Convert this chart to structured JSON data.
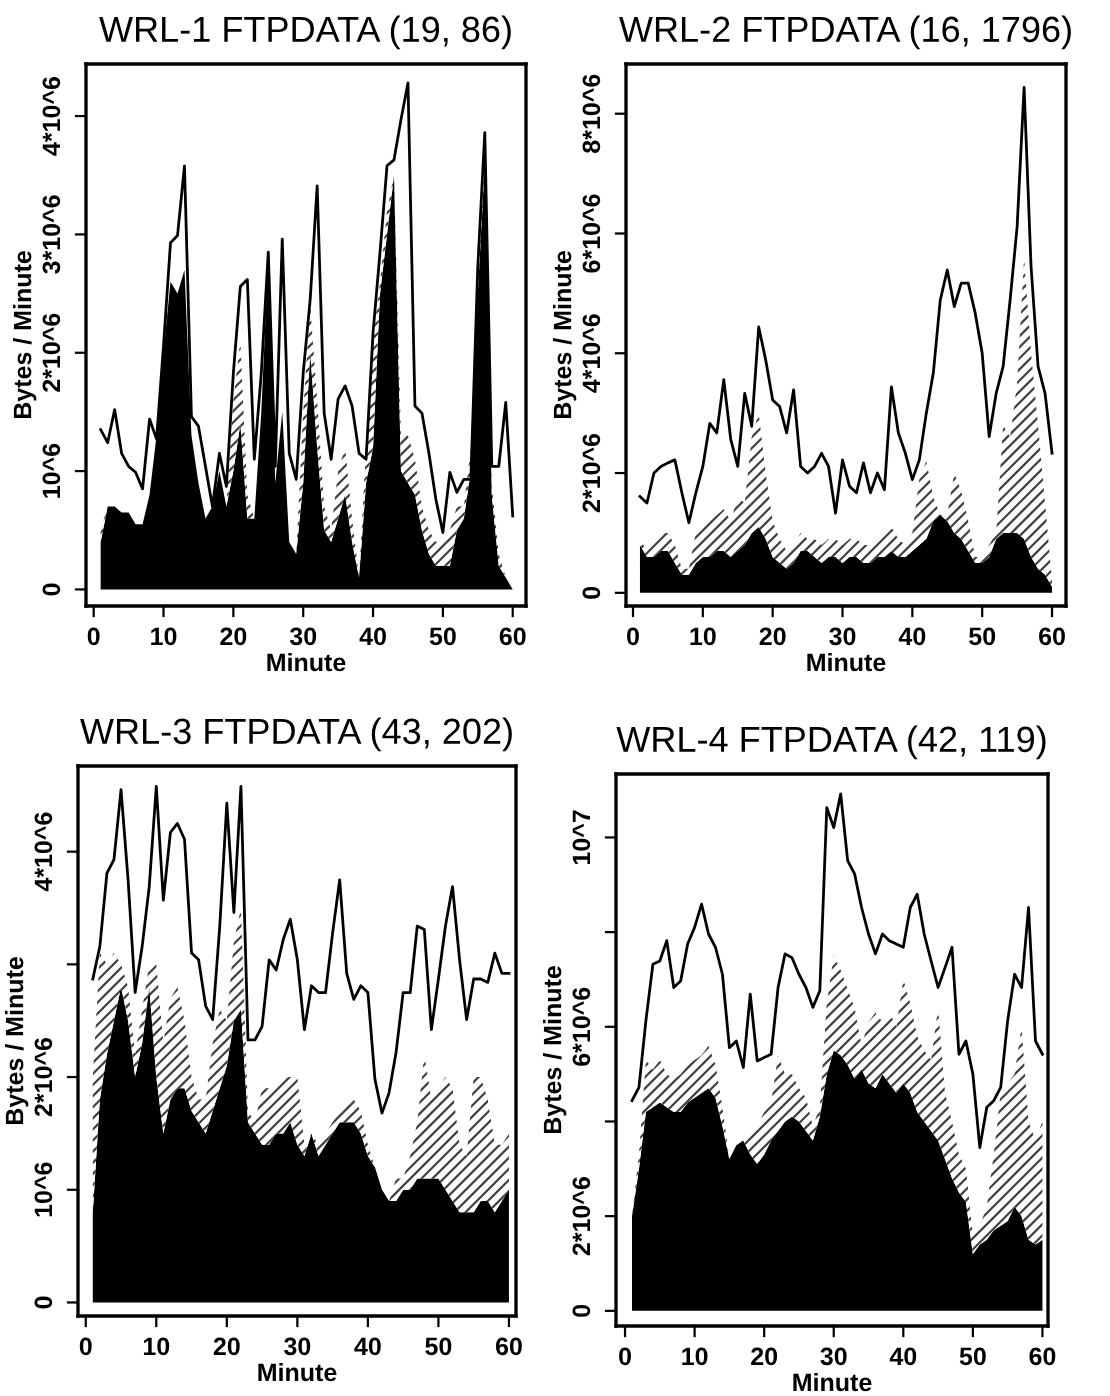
{
  "chart_data": [
    {
      "type": "area",
      "title": "WRL-1 FTPDATA (19, 86)",
      "xlabel": "Minute",
      "ylabel": "Bytes / Minute",
      "stacked": true,
      "grid": false,
      "x": [
        1,
        2,
        3,
        4,
        5,
        6,
        7,
        8,
        9,
        10,
        11,
        12,
        13,
        14,
        15,
        16,
        17,
        18,
        19,
        20,
        21,
        22,
        23,
        24,
        25,
        26,
        27,
        28,
        29,
        30,
        31,
        32,
        33,
        34,
        35,
        36,
        37,
        38,
        39,
        40,
        41,
        42,
        43,
        44,
        45,
        46,
        47,
        48,
        49,
        50,
        51,
        52,
        53,
        54,
        55,
        56,
        57,
        58,
        59,
        60
      ],
      "xlim": [
        -1.1,
        61.9
      ],
      "xticks": [
        0,
        10,
        20,
        30,
        40,
        50,
        60
      ],
      "ylim": [
        -140000.0,
        4440000.0
      ],
      "yticks": [
        0,
        {
          "value": 1000000.0,
          "label": "10^6"
        },
        {
          "value": 2000000.0,
          "label": "2*10^6"
        },
        {
          "value": 3000000.0,
          "label": "3*10^6"
        },
        {
          "value": 4000000.0,
          "label": "4*10^6"
        }
      ],
      "series": [
        {
          "color": "#000000",
          "values": [
            400000.0,
            700000.0,
            700000.0,
            650000.0,
            650000.0,
            550000.0,
            550000.0,
            800000.0,
            1300000.0,
            2000000.0,
            2600000.0,
            2500000.0,
            2700000.0,
            1300000.0,
            900000.0,
            600000.0,
            700000.0,
            1000000.0,
            700000.0,
            1000000.0,
            1400000.0,
            600000.0,
            600000.0,
            1500000.0,
            2800000.0,
            900000.0,
            1500000.0,
            400000.0,
            300000.0,
            900000.0,
            2000000.0,
            1200000.0,
            500000.0,
            400000.0,
            600000.0,
            800000.0,
            400000.0,
            100000.0,
            900000.0,
            1200000.0,
            2500000.0,
            3000000.0,
            3500000.0,
            1000000.0,
            900000.0,
            800000.0,
            500000.0,
            300000.0,
            200000.0,
            200000.0,
            200000.0,
            500000.0,
            600000.0,
            1000000.0,
            2500000.0,
            3600000.0,
            800000.0,
            200000.0,
            100000.0,
            0
          ]
        },
        {
          "color": "#404040",
          "values": [
            100000.0,
            0,
            0,
            0,
            0,
            0,
            0,
            0,
            0,
            0,
            0,
            0,
            0,
            0,
            0,
            0,
            0,
            0,
            0,
            600000.0,
            700000.0,
            200000.0,
            0,
            0,
            0,
            0,
            0,
            0,
            0,
            600000.0,
            400000.0,
            400000.0,
            200000.0,
            100000.0,
            400000.0,
            400000.0,
            200000.0,
            0,
            300000.0,
            900000.0,
            100000.0,
            200000.0,
            0,
            300000.0,
            400000.0,
            300000.0,
            200000.0,
            200000.0,
            200000.0,
            200000.0,
            300000.0,
            200000.0,
            100000.0,
            200000.0,
            100000.0,
            100000.0,
            100000.0,
            100000.0,
            0,
            0
          ]
        },
        {
          "type": "line",
          "color": "#000000",
          "values": [
            1350000.0,
            1240000.0,
            1520000.0,
            1150000.0,
            1040000.0,
            990000.0,
            850000.0,
            1440000.0,
            1270000.0,
            2060000.0,
            2930000.0,
            2990000.0,
            3580000.0,
            1460000.0,
            1380000.0,
            1040000.0,
            700000.0,
            1150000.0,
            870000.0,
            1830000.0,
            2560000.0,
            2620000.0,
            1100000.0,
            1830000.0,
            2850000.0,
            1040000.0,
            2960000.0,
            1150000.0,
            930000.0,
            1830000.0,
            2450000.0,
            3410000.0,
            1490000.0,
            1100000.0,
            1610000.0,
            1720000.0,
            1550000.0,
            1150000.0,
            1100000.0,
            2170000.0,
            2850000.0,
            3580000.0,
            3630000.0,
            3970000.0,
            4280000.0,
            1550000.0,
            1490000.0,
            1150000.0,
            760000.0,
            480000.0,
            990000.0,
            820000.0,
            930000.0,
            930000.0,
            2730000.0,
            3860000.0,
            1040000.0,
            1040000.0,
            1580000.0,
            620000.0
          ]
        }
      ]
    },
    {
      "type": "area",
      "title": "WRL-2 FTPDATA (16, 1796)",
      "xlabel": "Minute",
      "ylabel": "Bytes / Minute",
      "stacked": true,
      "grid": false,
      "x": [
        1,
        2,
        3,
        4,
        5,
        6,
        7,
        8,
        9,
        10,
        11,
        12,
        13,
        14,
        15,
        16,
        17,
        18,
        19,
        20,
        21,
        22,
        23,
        24,
        25,
        26,
        27,
        28,
        29,
        30,
        31,
        32,
        33,
        34,
        35,
        36,
        37,
        38,
        39,
        40,
        41,
        42,
        43,
        44,
        45,
        46,
        47,
        48,
        49,
        50,
        51,
        52,
        53,
        54,
        55,
        56,
        57,
        58,
        59,
        60
      ],
      "xlim": [
        -1,
        62
      ],
      "xticks": [
        0,
        10,
        20,
        30,
        40,
        50,
        60
      ],
      "ylim": [
        -220000.0,
        8830000.0
      ],
      "yticks": [
        0,
        {
          "value": 2000000.0,
          "label": "2*10^6"
        },
        {
          "value": 4000000.0,
          "label": "4*10^6"
        },
        {
          "value": 6000000.0,
          "label": "6*10^6"
        },
        {
          "value": 8000000.0,
          "label": "8*10^6"
        }
      ],
      "series": [
        {
          "color": "#000000",
          "values": [
            800000.0,
            600000.0,
            600000.0,
            700000.0,
            700000.0,
            500000.0,
            300000.0,
            300000.0,
            500000.0,
            600000.0,
            600000.0,
            700000.0,
            700000.0,
            600000.0,
            700000.0,
            800000.0,
            1000000.0,
            1100000.0,
            900000.0,
            600000.0,
            500000.0,
            400000.0,
            500000.0,
            700000.0,
            700000.0,
            600000.0,
            500000.0,
            600000.0,
            600000.0,
            500000.0,
            600000.0,
            600000.0,
            500000.0,
            500000.0,
            600000.0,
            600000.0,
            700000.0,
            600000.0,
            600000.0,
            700000.0,
            800000.0,
            900000.0,
            1200000.0,
            1300000.0,
            1200000.0,
            1000000.0,
            900000.0,
            700000.0,
            500000.0,
            500000.0,
            600000.0,
            900000.0,
            1000000.0,
            1000000.0,
            1000000.0,
            900000.0,
            600000.0,
            400000.0,
            300000.0,
            100000.0
          ]
        },
        {
          "color": "#404040",
          "values": [
            100000.0,
            100000.0,
            300000.0,
            300000.0,
            300000.0,
            300000.0,
            100000.0,
            100000.0,
            500000.0,
            500000.0,
            600000.0,
            600000.0,
            700000.0,
            600000.0,
            900000.0,
            700000.0,
            1600000.0,
            1900000.0,
            1100000.0,
            600000.0,
            400000.0,
            300000.0,
            300000.0,
            300000.0,
            200000.0,
            300000.0,
            300000.0,
            300000.0,
            300000.0,
            300000.0,
            300000.0,
            300000.0,
            300000.0,
            300000.0,
            300000.0,
            400000.0,
            400000.0,
            300000.0,
            200000.0,
            300000.0,
            1100000.0,
            1300000.0,
            400000.0,
            0,
            100000.0,
            1000000.0,
            800000.0,
            500000.0,
            100000.0,
            100000.0,
            200000.0,
            100000.0,
            1800000.0,
            1600000.0,
            2500000.0,
            4700000.0,
            3400000.0,
            2400000.0,
            1200000.0,
            100000.0
          ]
        },
        {
          "type": "line",
          "color": "#000000",
          "values": [
            1610000.0,
            1500000.0,
            2000000.0,
            2110000.0,
            2170000.0,
            2220000.0,
            1670000.0,
            1170000.0,
            1670000.0,
            2110000.0,
            2830000.0,
            2670000.0,
            3560000.0,
            2560000.0,
            2110000.0,
            3330000.0,
            2780000.0,
            4440000.0,
            3890000.0,
            3220000.0,
            3110000.0,
            2670000.0,
            3390000.0,
            2110000.0,
            2000000.0,
            2110000.0,
            2330000.0,
            2110000.0,
            1330000.0,
            2220000.0,
            1780000.0,
            1670000.0,
            2170000.0,
            1670000.0,
            2000000.0,
            1720000.0,
            3440000.0,
            2670000.0,
            2330000.0,
            1890000.0,
            2220000.0,
            3000000.0,
            3670000.0,
            4890000.0,
            5390000.0,
            4780000.0,
            5170000.0,
            5170000.0,
            4670000.0,
            4000000.0,
            2610000.0,
            3330000.0,
            3780000.0,
            4890000.0,
            6110000.0,
            8440000.0,
            5440000.0,
            3780000.0,
            3330000.0,
            2330000.0
          ]
        }
      ]
    },
    {
      "type": "area",
      "title": "WRL-3 FTPDATA (43, 202)",
      "xlabel": "Minute",
      "ylabel": "Bytes / Minute",
      "stacked": true,
      "grid": false,
      "x": [
        1,
        2,
        3,
        4,
        5,
        6,
        7,
        8,
        9,
        10,
        11,
        12,
        13,
        14,
        15,
        16,
        17,
        18,
        19,
        20,
        21,
        22,
        23,
        24,
        25,
        26,
        27,
        28,
        29,
        30,
        31,
        32,
        33,
        34,
        35,
        36,
        37,
        38,
        39,
        40,
        41,
        42,
        43,
        44,
        45,
        46,
        47,
        48,
        49,
        50,
        51,
        52,
        53,
        54,
        55,
        56,
        57,
        58,
        59,
        60
      ],
      "xlim": [
        -1.1,
        61
      ],
      "xticks": [
        0,
        10,
        20,
        30,
        40,
        50,
        60
      ],
      "ylim": [
        -120000.0,
        4760000.0
      ],
      "yticks": [
        0,
        {
          "value": 1000000.0,
          "label": "10^6"
        },
        {
          "value": 2000000.0,
          "label": "2*10^6"
        },
        {
          "value": 3000000.0,
          "label": null
        },
        {
          "value": 4000000.0,
          "label": "4*10^6"
        }
      ],
      "series": [
        {
          "color": "#000000",
          "values": [
            800000.0,
            1800000.0,
            2200000.0,
            2500000.0,
            2800000.0,
            2500000.0,
            2000000.0,
            2300000.0,
            2800000.0,
            2000000.0,
            1500000.0,
            1800000.0,
            1900000.0,
            1900000.0,
            1700000.0,
            1600000.0,
            1500000.0,
            1700000.0,
            1900000.0,
            2100000.0,
            2500000.0,
            2600000.0,
            1600000.0,
            1500000.0,
            1400000.0,
            1400000.0,
            1500000.0,
            1500000.0,
            1600000.0,
            1400000.0,
            1300000.0,
            1500000.0,
            1300000.0,
            1400000.0,
            1500000.0,
            1600000.0,
            1600000.0,
            1600000.0,
            1500000.0,
            1300000.0,
            1200000.0,
            1000000.0,
            900000.0,
            900000.0,
            1000000.0,
            1000000.0,
            1100000.0,
            1100000.0,
            1100000.0,
            1100000.0,
            1000000.0,
            900000.0,
            800000.0,
            800000.0,
            800000.0,
            900000.0,
            900000.0,
            800000.0,
            900000.0,
            1000000.0
          ]
        },
        {
          "color": "#404040",
          "values": [
            1200000.0,
            1300000.0,
            800000.0,
            600000.0,
            200000.0,
            300000.0,
            200000.0,
            300000.0,
            200000.0,
            1000000.0,
            800000.0,
            900000.0,
            900000.0,
            600000.0,
            300000.0,
            200000.0,
            300000.0,
            600000.0,
            700000.0,
            400000.0,
            700000.0,
            900000.0,
            100000.0,
            100000.0,
            500000.0,
            500000.0,
            400000.0,
            500000.0,
            400000.0,
            600000.0,
            100000.0,
            0,
            100000.0,
            100000.0,
            100000.0,
            100000.0,
            200000.0,
            200000.0,
            200000.0,
            100000.0,
            0,
            0,
            0,
            200000.0,
            100000.0,
            300000.0,
            500000.0,
            1100000.0,
            700000.0,
            800000.0,
            1000000.0,
            1000000.0,
            600000.0,
            500000.0,
            1200000.0,
            1100000.0,
            900000.0,
            600000.0,
            500000.0,
            500000.0
          ]
        },
        {
          "type": "line",
          "color": "#000000",
          "values": [
            2870000.0,
            3160000.0,
            3810000.0,
            3930000.0,
            4550000.0,
            3750000.0,
            2750000.0,
            3160000.0,
            3690000.0,
            4580000.0,
            3570000.0,
            4170000.0,
            4250000.0,
            4110000.0,
            3100000.0,
            3040000.0,
            2630000.0,
            2510000.0,
            3340000.0,
            4430000.0,
            3460000.0,
            4580000.0,
            2330000.0,
            2330000.0,
            2450000.0,
            3040000.0,
            2950000.0,
            3220000.0,
            3400000.0,
            3040000.0,
            2420000.0,
            2810000.0,
            2750000.0,
            2750000.0,
            3280000.0,
            3750000.0,
            2920000.0,
            2690000.0,
            2810000.0,
            2750000.0,
            1980000.0,
            1680000.0,
            1860000.0,
            2220000.0,
            2750000.0,
            2750000.0,
            3340000.0,
            3310000.0,
            2420000.0,
            2870000.0,
            3340000.0,
            3690000.0,
            3040000.0,
            2510000.0,
            2870000.0,
            2870000.0,
            2840000.0,
            3100000.0,
            2920000.0,
            2920000.0
          ]
        }
      ]
    },
    {
      "type": "area",
      "title": "WRL-4 FTPDATA (42, 119)",
      "xlabel": "Minute",
      "ylabel": "Bytes / Minute",
      "stacked": true,
      "grid": false,
      "x": [
        1,
        2,
        3,
        4,
        5,
        6,
        7,
        8,
        9,
        10,
        11,
        12,
        13,
        14,
        15,
        16,
        17,
        18,
        19,
        20,
        21,
        22,
        23,
        24,
        25,
        26,
        27,
        28,
        29,
        30,
        31,
        32,
        33,
        34,
        35,
        36,
        37,
        38,
        39,
        40,
        41,
        42,
        43,
        44,
        45,
        46,
        47,
        48,
        49,
        50,
        51,
        52,
        53,
        54,
        55,
        56,
        57,
        58,
        59,
        60
      ],
      "xlim": [
        -1.3,
        60.8
      ],
      "xticks": [
        0,
        10,
        20,
        30,
        40,
        50,
        60
      ],
      "ylim": [
        -320000.0,
        11340000.0
      ],
      "yticks": [
        0,
        {
          "value": 2000000.0,
          "label": "2*10^6"
        },
        {
          "value": 4000000.0,
          "label": null
        },
        {
          "value": 6000000.0,
          "label": "6*10^6"
        },
        {
          "value": 8000000.0,
          "label": null
        },
        {
          "value": 10000000.0,
          "label": "10^7"
        }
      ],
      "series": [
        {
          "color": "#000000",
          "values": [
            2000000.0,
            3000000.0,
            4200000.0,
            4300000.0,
            4400000.0,
            4300000.0,
            4200000.0,
            4200000.0,
            4400000.0,
            4500000.0,
            4600000.0,
            4700000.0,
            4500000.0,
            3900000.0,
            3200000.0,
            3500000.0,
            3600000.0,
            3300000.0,
            3100000.0,
            3300000.0,
            3600000.0,
            3800000.0,
            4000000.0,
            4100000.0,
            4000000.0,
            3800000.0,
            3600000.0,
            4100000.0,
            5000000.0,
            5500000.0,
            5400000.0,
            5200000.0,
            4900000.0,
            5100000.0,
            4800000.0,
            4700000.0,
            5000000.0,
            4800000.0,
            4600000.0,
            4800000.0,
            4600000.0,
            4200000.0,
            4000000.0,
            3800000.0,
            3600000.0,
            3200000.0,
            2800000.0,
            2500000.0,
            2300000.0,
            1200000.0,
            1400000.0,
            1500000.0,
            1700000.0,
            1800000.0,
            1900000.0,
            2200000.0,
            2000000.0,
            1500000.0,
            1400000.0,
            1500000.0
          ]
        },
        {
          "color": "#404040",
          "values": [
            0,
            300000.0,
            1100000.0,
            800000.0,
            900000.0,
            700000.0,
            700000.0,
            800000.0,
            800000.0,
            800000.0,
            800000.0,
            900000.0,
            700000.0,
            400000.0,
            0,
            0,
            0,
            400000.0,
            800000.0,
            900000.0,
            800000.0,
            1600000.0,
            1000000.0,
            900000.0,
            700000.0,
            700000.0,
            300000.0,
            200000.0,
            1500000.0,
            2000000.0,
            1800000.0,
            1600000.0,
            1500000.0,
            500000.0,
            1300000.0,
            1600000.0,
            1100000.0,
            1500000.0,
            1400000.0,
            2200000.0,
            1900000.0,
            1600000.0,
            1500000.0,
            1500000.0,
            2800000.0,
            1400000.0,
            1200000.0,
            800000.0,
            700000.0,
            400000.0,
            400000.0,
            700000.0,
            1600000.0,
            2800000.0,
            2900000.0,
            2800000.0,
            4000000.0,
            2500000.0,
            2200000.0,
            2500000.0
          ]
        },
        {
          "type": "line",
          "color": "#000000",
          "values": [
            4440000.0,
            4720000.0,
            6130000.0,
            7320000.0,
            7390000.0,
            7820000.0,
            6830000.0,
            6970000.0,
            7750000.0,
            8100000.0,
            8590000.0,
            7960000.0,
            7680000.0,
            7110000.0,
            5560000.0,
            5700000.0,
            5140000.0,
            6690000.0,
            5280000.0,
            5350000.0,
            5420000.0,
            6830000.0,
            7540000.0,
            7460000.0,
            7110000.0,
            6830000.0,
            6410000.0,
            6760000.0,
            10630000.0,
            10210000.0,
            10920000.0,
            9510000.0,
            9230000.0,
            8520000.0,
            7960000.0,
            7540000.0,
            7960000.0,
            7820000.0,
            7750000.0,
            7680000.0,
            8520000.0,
            8800000.0,
            7960000.0,
            7390000.0,
            6830000.0,
            7250000.0,
            7680000.0,
            5420000.0,
            5700000.0,
            5000000.0,
            3450000.0,
            4300000.0,
            4440000.0,
            4720000.0,
            6130000.0,
            7110000.0,
            6830000.0,
            8520000.0,
            5700000.0,
            5420000.0
          ]
        }
      ]
    }
  ]
}
